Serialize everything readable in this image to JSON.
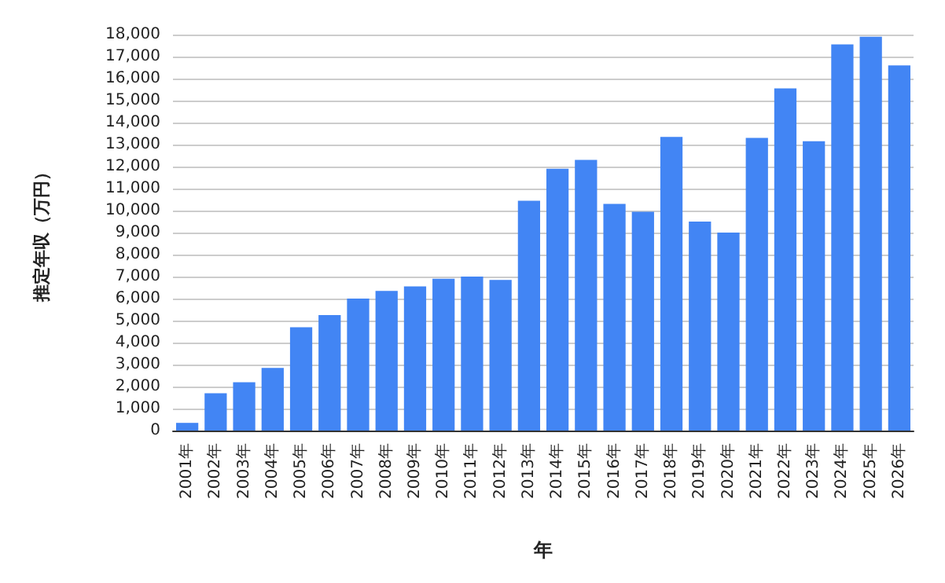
{
  "chart_data": {
    "type": "bar",
    "xlabel": "年",
    "ylabel": "推定年収（万円）",
    "categories": [
      "2001年",
      "2002年",
      "2003年",
      "2004年",
      "2005年",
      "2006年",
      "2007年",
      "2008年",
      "2009年",
      "2010年",
      "2011年",
      "2012年",
      "2013年",
      "2014年",
      "2015年",
      "2016年",
      "2017年",
      "2018年",
      "2019年",
      "2020年",
      "2021年",
      "2022年",
      "2023年",
      "2024年",
      "2025年",
      "2026年"
    ],
    "values": [
      350,
      1700,
      2200,
      2850,
      4700,
      5250,
      6000,
      6350,
      6550,
      6900,
      7000,
      6850,
      10450,
      11900,
      12300,
      10300,
      9950,
      13350,
      9500,
      9000,
      13300,
      15550,
      13150,
      17550,
      17900,
      16600
    ],
    "color": "#4285f4",
    "ylim": [
      0,
      18000
    ],
    "yticks": [
      {
        "value": 0,
        "label": "0"
      },
      {
        "value": 1000,
        "label": "1,000"
      },
      {
        "value": 2000,
        "label": "2,000"
      },
      {
        "value": 3000,
        "label": "3,000"
      },
      {
        "value": 4000,
        "label": "4,000"
      },
      {
        "value": 5000,
        "label": "5,000"
      },
      {
        "value": 6000,
        "label": "6,000"
      },
      {
        "value": 7000,
        "label": "7,000"
      },
      {
        "value": 8000,
        "label": "8,000"
      },
      {
        "value": 9000,
        "label": "9,000"
      },
      {
        "value": 10000,
        "label": "10,000"
      },
      {
        "value": 11000,
        "label": "11,000"
      },
      {
        "value": 12000,
        "label": "12,000"
      },
      {
        "value": 13000,
        "label": "13,000"
      },
      {
        "value": 14000,
        "label": "14,000"
      },
      {
        "value": 15000,
        "label": "15,000"
      },
      {
        "value": 16000,
        "label": "16,000"
      },
      {
        "value": 17000,
        "label": "17,000"
      },
      {
        "value": 18000,
        "label": "18,000"
      }
    ],
    "grid": "y"
  }
}
